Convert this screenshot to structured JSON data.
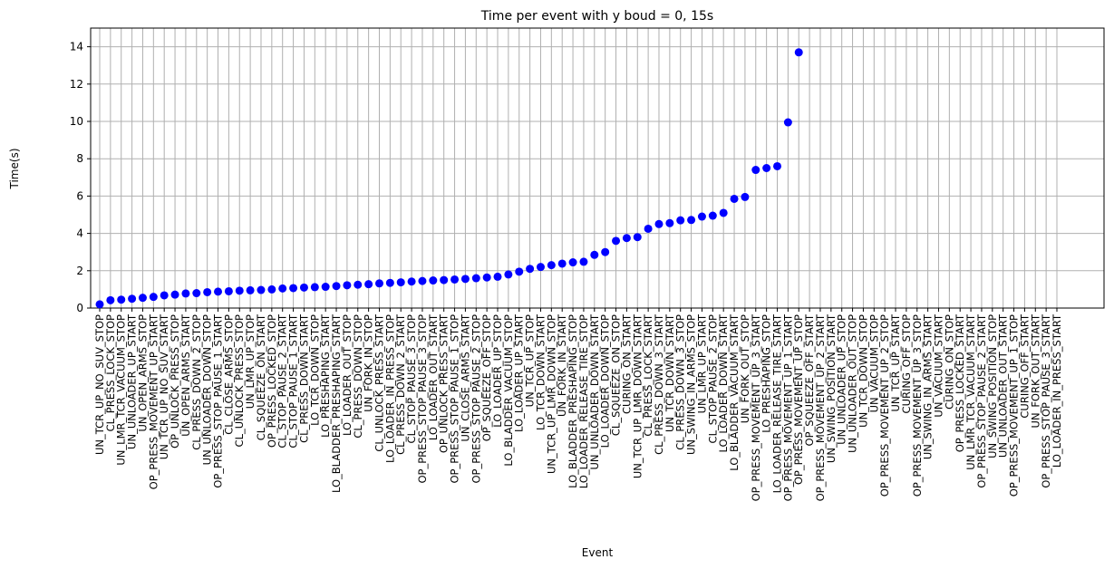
{
  "chart_data": {
    "type": "scatter",
    "title": "Time per event with y boud = 0, 15s",
    "x_label": "Event",
    "y_label": "Time(s)",
    "categories": [
      "UN_TCR_UP_NO_SUV_STOP",
      "CL_PRESS_LOCK_STOP",
      "UN_LMR_TCR_VACUUM_STOP",
      "UN_UNLOADER_UP_START",
      "UN_OPEN_ARMS_STOP",
      "OP_PRESS_MOVEMENT_UP_START",
      "UN_TCR_UP_NO_SUV_START",
      "OP_UNLOCK_PRESS_STOP",
      "UN_OPEN_ARMS_START",
      "CL_PRESS_DOWN_2_STOP",
      "UN_UNLOADER_DOWN_STOP",
      "OP_PRESS_STOP_PAUSE_1_START",
      "CL_CLOSE_ARMS_STOP",
      "CL_UNLOCK_PRESS_STOP",
      "UN_LMR_UP_STOP",
      "CL_SQUEEZE_ON_START",
      "OP_PRESS_LOCKED_STOP",
      "CL_STOP_PAUSE_2_START",
      "CL_STOP_PAUSE_1_START",
      "CL_PRESS_DOWN_START",
      "LO_TCR_DOWN_STOP",
      "LO_PRESHAPING_START",
      "LO_BLADDER_PRESHAPING_START",
      "LO_LOADER_OUT_STOP",
      "CL_PRESS_DOWN_STOP",
      "UN_FORK_IN_STOP",
      "CL_UNLOCK_PRESS_START",
      "LO_LOADER_IN_PRESS_STOP",
      "CL_PRESS_DOWN_2_START",
      "CL_STOP_PAUSE_3_STOP",
      "OP_PRESS_STOP_PAUSE_3_STOP",
      "LO_LOADER_OUT_START",
      "OP_UNLOCK_PRESS_START",
      "OP_PRESS_STOP_PAUSE_1_STOP",
      "UN_CLOSE_ARMS_START",
      "OP_PRESS_STOP_PAUSE_2_STOP",
      "OP_SQUEEZE_OFF_STOP",
      "LO_LOADER_UP_STOP",
      "LO_BLADDER_VACUUM_STOP",
      "LO_LOADER_UP_START",
      "UN_TCR_UP_STOP",
      "LO_TCR_DOWN_START",
      "UN_TCR_UP_LMR_DOWN_STOP",
      "UN_FORK_IN_START",
      "LO_BLADDER_PRESHAPING_STOP",
      "LO_LOADER_RELEASE_TIRE_STOP",
      "UN_UNLOADER_DOWN_START",
      "LO_LOADER_DOWN_STOP",
      "CL_SQUEEZE_ON_STOP",
      "CURING_ON_START",
      "UN_TCR_UP_LMR_DOWN_START",
      "CL_PRESS_LOCK_START",
      "CL_PRESS_DOWN_3_START",
      "UN_TCR_DOWN_START",
      "CL_PRESS_DOWN_3_STOP",
      "UN_SWING_IN_ARMS_STOP",
      "UN_LMR_UP_START",
      "CL_STOP_PAUSE_2_STOP",
      "LO_LOADER_DOWN_START",
      "LO_BLADDER_VACUUM_START",
      "UN_FORK_OUT_STOP",
      "OP_PRESS_MOVEMENT_UP_3_START",
      "LO_PRESHAPING_STOP",
      "LO_LOADER_RELEASE_TIRE_START",
      "OP_PRESS_MOVEMENT_UP_1_START",
      "OP_PRESS_MOVEMENT_UP_STOP",
      "OP_SQUEEZE_OFF_START",
      "OP_PRESS_MOVEMENT_UP_2_START",
      "UN_SWING_POSITION_START",
      "UN_UNLOADER_UP_STOP",
      "UN_UNLOADER_OUT_STOP",
      "UN_TCR_DOWN_STOP",
      "UN_VACUUM_STOP",
      "OP_PRESS_MOVEMENT_UP_2_STOP",
      "UN_TCR_UP_START",
      "CURING_OFF_STOP",
      "OP_PRESS_MOVEMENT_UP_3_STOP",
      "UN_SWING_IN_ARMS_START",
      "UN_VACUUM_START",
      "CURING_ON_STOP",
      "OP_PRESS_LOCKED_START",
      "UN_LMR_TCR_VACUUM_START",
      "OP_PRESS_STOP_PAUSE_2_START",
      "UN_SWING_POSITION_STOP",
      "UN_UNLOADER_OUT_START",
      "OP_PRESS_MOVEMENT_UP_1_STOP",
      "CURING_OFF_START",
      "UN_FORK_OUT_START",
      "OP_PRESS_STOP_PAUSE_3_START",
      "LO_LOADER_IN_PRESS_START"
    ],
    "values": [
      0.2,
      0.42,
      0.45,
      0.5,
      0.55,
      0.6,
      0.68,
      0.72,
      0.78,
      0.8,
      0.85,
      0.88,
      0.9,
      0.93,
      0.95,
      0.97,
      1.0,
      1.05,
      1.07,
      1.1,
      1.12,
      1.14,
      1.18,
      1.22,
      1.25,
      1.28,
      1.32,
      1.35,
      1.38,
      1.42,
      1.45,
      1.48,
      1.5,
      1.53,
      1.56,
      1.6,
      1.64,
      1.68,
      1.8,
      1.95,
      2.1,
      2.2,
      2.3,
      2.38,
      2.45,
      2.48,
      2.85,
      3.0,
      3.6,
      3.75,
      3.8,
      4.25,
      4.5,
      4.55,
      4.7,
      4.72,
      4.9,
      4.95,
      5.1,
      5.85,
      5.95,
      7.4,
      7.5,
      7.6,
      9.95,
      13.7,
      null,
      null,
      null,
      null,
      null,
      null,
      null,
      null,
      null,
      null,
      null,
      null,
      null,
      null,
      null,
      null,
      null,
      null,
      null,
      null,
      null,
      null,
      null,
      null
    ],
    "color": "#0000ff",
    "ylim": [
      0,
      15
    ],
    "yticks": [
      0,
      2,
      4,
      6,
      8,
      10,
      12,
      14
    ],
    "grid": true
  }
}
